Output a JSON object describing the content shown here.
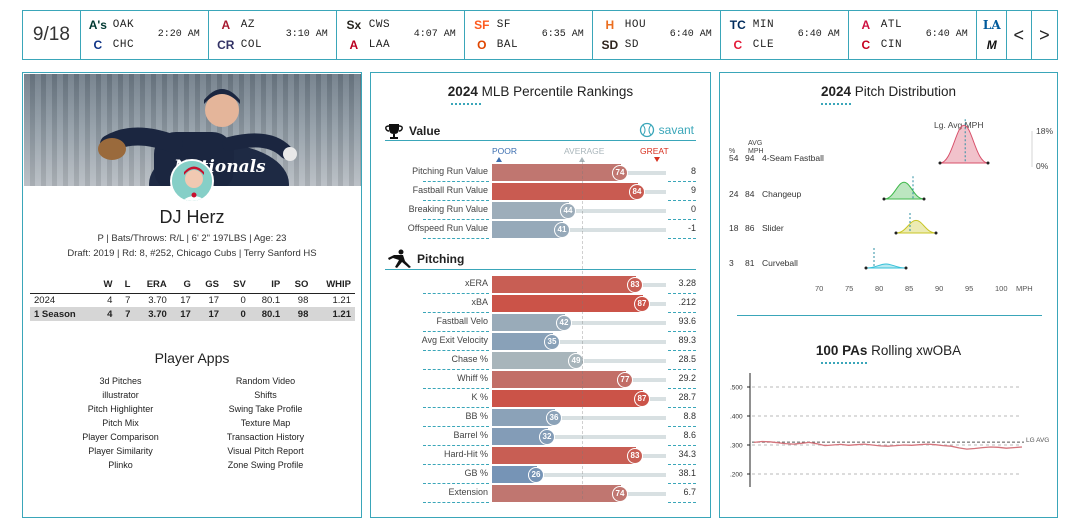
{
  "scoreboard": {
    "date": "9/18",
    "games": [
      {
        "away": "OAK",
        "home": "CHC",
        "time": "2:20 AM",
        "away_color": "#003831",
        "home_color": "#0E3386",
        "away_logo": "A's",
        "home_logo": "C"
      },
      {
        "away": "AZ",
        "home": "COL",
        "time": "3:10 AM",
        "away_color": "#A71930",
        "home_color": "#333366",
        "away_logo": "A",
        "home_logo": "CR"
      },
      {
        "away": "CWS",
        "home": "LAA",
        "time": "4:07 AM",
        "away_color": "#27251F",
        "home_color": "#BA0021",
        "away_logo": "Sx",
        "home_logo": "A"
      },
      {
        "away": "SF",
        "home": "BAL",
        "time": "6:35 AM",
        "away_color": "#FD5A1E",
        "home_color": "#DF4601",
        "away_logo": "SF",
        "home_logo": "O"
      },
      {
        "away": "HOU",
        "home": "SD",
        "time": "6:40 AM",
        "away_color": "#EB6E1F",
        "home_color": "#2F241D",
        "away_logo": "H",
        "home_logo": "SD"
      },
      {
        "away": "MIN",
        "home": "CLE",
        "time": "6:40 AM",
        "away_color": "#002B5C",
        "home_color": "#E31937",
        "away_logo": "TC",
        "home_logo": "C"
      },
      {
        "away": "ATL",
        "home": "CIN",
        "time": "6:40 AM",
        "away_color": "#CE1141",
        "home_color": "#C6011F",
        "away_logo": "A",
        "home_logo": "C"
      }
    ],
    "partial_game": {
      "away_logo": "LA",
      "home_logo": "M",
      "away_color": "#005A9C",
      "home_color": "#00A3E0"
    },
    "prev_label": "<",
    "next_label": ">"
  },
  "player": {
    "name": "DJ Herz",
    "bio": "P | Bats/Throws: R/L | 6' 2\" 197LBS | Age: 23",
    "draft": "Draft: 2019 | Rd: 8, #252, Chicago Cubs | Terry Sanford HS",
    "jersey_text": "Nationals"
  },
  "stats": {
    "headers": [
      "",
      "W",
      "L",
      "ERA",
      "G",
      "GS",
      "SV",
      "IP",
      "SO",
      "WHIP"
    ],
    "rows": [
      [
        "2024",
        "4",
        "7",
        "3.70",
        "17",
        "17",
        "0",
        "80.1",
        "98",
        "1.21"
      ],
      [
        "1 Season",
        "4",
        "7",
        "3.70",
        "17",
        "17",
        "0",
        "80.1",
        "98",
        "1.21"
      ]
    ]
  },
  "apps": {
    "title": "Player Apps",
    "left": [
      "3d Pitches",
      "illustrator",
      "Pitch Highlighter",
      "Pitch Mix",
      "Player Comparison",
      "Player Similarity",
      "Plinko"
    ],
    "right": [
      "Random Video",
      "Shifts",
      "Swing Take Profile",
      "Texture Map",
      "Transaction History",
      "Visual Pitch Report",
      "Zone Swing Profile"
    ]
  },
  "percentile": {
    "title_year": "2024",
    "title_rest": "MLB Percentile Rankings",
    "value_header": "Value",
    "pitching_header": "Pitching",
    "brand": "savant",
    "scale": {
      "poor": "POOR",
      "average": "AVERAGE",
      "great": "GREAT"
    },
    "value_metrics": [
      {
        "label": "Pitching Run Value",
        "pct": 74,
        "value": "8"
      },
      {
        "label": "Fastball Run Value",
        "pct": 84,
        "value": "9"
      },
      {
        "label": "Breaking Run Value",
        "pct": 44,
        "value": "0"
      },
      {
        "label": "Offspeed Run Value",
        "pct": 41,
        "value": "-1"
      }
    ],
    "pitching_metrics": [
      {
        "label": "xERA",
        "pct": 83,
        "value": "3.28"
      },
      {
        "label": "xBA",
        "pct": 87,
        "value": ".212"
      },
      {
        "label": "Fastball Velo",
        "pct": 42,
        "value": "93.6"
      },
      {
        "label": "Avg Exit Velocity",
        "pct": 35,
        "value": "89.3"
      },
      {
        "label": "Chase %",
        "pct": 49,
        "value": "28.5"
      },
      {
        "label": "Whiff %",
        "pct": 77,
        "value": "29.2"
      },
      {
        "label": "K %",
        "pct": 87,
        "value": "28.7"
      },
      {
        "label": "BB %",
        "pct": 36,
        "value": "8.8"
      },
      {
        "label": "Barrel %",
        "pct": 32,
        "value": "8.6"
      },
      {
        "label": "Hard-Hit %",
        "pct": 83,
        "value": "34.3"
      },
      {
        "label": "GB %",
        "pct": 26,
        "value": "38.1"
      },
      {
        "label": "Extension",
        "pct": 74,
        "value": "6.7"
      }
    ]
  },
  "pitch_dist": {
    "title_year": "2024",
    "title_rest": "Pitch Distribution",
    "lg_avg_label": "Lg. Avg MPH",
    "col_pct": "%",
    "col_avg": "AVG",
    "col_mph": "MPH",
    "pct_top": "18%",
    "pct_bottom": "0%",
    "pitches": [
      {
        "pct": "54",
        "mph": "94",
        "name": "4-Seam Fastball",
        "color": "#d8506a",
        "lg_avg": 94.2
      },
      {
        "pct": "24",
        "mph": "84",
        "name": "Changeup",
        "color": "#3fb84b",
        "lg_avg": 85.5
      },
      {
        "pct": "18",
        "mph": "86",
        "name": "Slider",
        "color": "#c9c626",
        "lg_avg": 85.0
      },
      {
        "pct": "3",
        "mph": "81",
        "name": "Curveball",
        "color": "#34c0d8",
        "lg_avg": 79.0
      }
    ],
    "x_ticks": [
      "70",
      "75",
      "80",
      "85",
      "90",
      "95",
      "100"
    ],
    "x_unit": "MPH"
  },
  "rolling": {
    "title_bold": "100 PAs",
    "title_rest": "Rolling xwOBA",
    "y_ticks": [
      ".500",
      ".400",
      ".300",
      ".200"
    ],
    "lg_avg_label": "LG AVG",
    "lg_avg_value": 0.31
  },
  "colors": {
    "accent": "#3aa6b9",
    "great": "#d7301f",
    "poor": "#3d6fb0"
  }
}
